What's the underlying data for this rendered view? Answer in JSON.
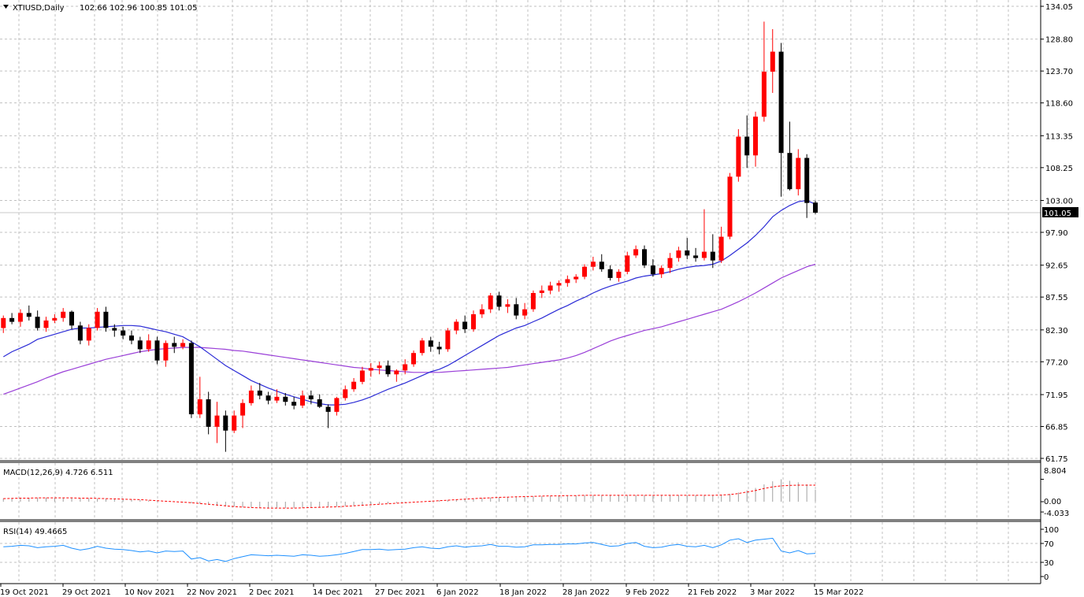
{
  "header": {
    "symbol": "XTIUSD,Daily",
    "ohlc": "102.66 102.96 100.85 101.05"
  },
  "price_axis": {
    "ticks": [
      "134.05",
      "128.80",
      "123.70",
      "118.60",
      "113.35",
      "108.25",
      "103.00",
      "97.90",
      "92.65",
      "87.55",
      "82.30",
      "77.20",
      "71.95",
      "66.85",
      "61.75"
    ],
    "current_price": "101.05"
  },
  "time_axis": {
    "labels": [
      "19 Oct 2021",
      "29 Oct 2021",
      "10 Nov 2021",
      "22 Nov 2021",
      "2 Dec 2021",
      "14 Dec 2021",
      "27 Dec 2021",
      "6 Jan 2022",
      "18 Jan 2022",
      "28 Jan 2022",
      "9 Feb 2022",
      "21 Feb 2022",
      "3 Mar 2022",
      "15 Mar 2022"
    ]
  },
  "macd": {
    "label": "MACD(12,26,9) 4.726 6.511",
    "ticks": [
      "8.804",
      "0.00",
      "-4.033"
    ]
  },
  "rsi": {
    "label": "RSI(14) 49.4665",
    "ticks": [
      "100",
      "70",
      "30",
      "0"
    ]
  },
  "colors": {
    "bull": "#ff0000",
    "bear": "#000000",
    "ma_fast": "#2b2bd6",
    "ma_slow": "#9a3fd8",
    "macd_hist": "#a0a0a0",
    "macd_signal": "#ff0000",
    "rsi_line": "#1e90ff",
    "grid": "#c0c0c0"
  },
  "chart_data": {
    "type": "candlestick",
    "series": [
      {
        "name": "XTIUSD,Daily",
        "candles": [
          [
            82.6,
            84.6,
            81.8,
            84.2
          ],
          [
            84.2,
            85.0,
            83.2,
            83.6
          ],
          [
            83.6,
            85.6,
            82.8,
            85.0
          ],
          [
            85.0,
            86.2,
            83.8,
            84.4
          ],
          [
            84.4,
            85.4,
            82.2,
            82.6
          ],
          [
            82.6,
            84.4,
            82.0,
            83.8
          ],
          [
            83.8,
            84.8,
            83.4,
            84.2
          ],
          [
            84.2,
            85.8,
            83.6,
            85.2
          ],
          [
            85.2,
            85.4,
            82.4,
            83.0
          ],
          [
            83.0,
            83.6,
            80.0,
            80.6
          ],
          [
            80.6,
            83.2,
            79.8,
            82.6
          ],
          [
            82.6,
            85.8,
            82.2,
            85.2
          ],
          [
            85.2,
            86.0,
            82.0,
            82.6
          ],
          [
            82.6,
            83.2,
            81.2,
            82.2
          ],
          [
            82.2,
            82.8,
            80.8,
            81.4
          ],
          [
            81.4,
            82.2,
            80.0,
            80.6
          ],
          [
            80.6,
            81.2,
            78.6,
            79.2
          ],
          [
            79.2,
            81.6,
            78.8,
            80.6
          ],
          [
            80.6,
            81.2,
            76.8,
            77.4
          ],
          [
            77.4,
            80.6,
            76.4,
            80.2
          ],
          [
            80.2,
            81.2,
            78.6,
            79.6
          ],
          [
            79.6,
            80.8,
            79.2,
            80.2
          ],
          [
            80.2,
            80.6,
            68.2,
            68.8
          ],
          [
            68.8,
            74.8,
            68.2,
            71.2
          ],
          [
            71.2,
            72.4,
            65.6,
            66.8
          ],
          [
            66.8,
            70.8,
            64.2,
            68.6
          ],
          [
            68.6,
            69.4,
            62.8,
            66.2
          ],
          [
            66.2,
            69.4,
            65.8,
            68.6
          ],
          [
            68.6,
            71.2,
            66.6,
            70.6
          ],
          [
            70.6,
            73.4,
            70.2,
            72.6
          ],
          [
            72.6,
            73.8,
            71.2,
            71.8
          ],
          [
            71.8,
            72.4,
            70.4,
            71.0
          ],
          [
            71.0,
            72.8,
            70.6,
            71.6
          ],
          [
            71.6,
            72.2,
            70.2,
            70.8
          ],
          [
            70.8,
            71.6,
            69.6,
            70.2
          ],
          [
            70.2,
            72.6,
            69.8,
            71.8
          ],
          [
            71.8,
            72.6,
            70.4,
            71.2
          ],
          [
            71.2,
            72.0,
            69.8,
            70.0
          ],
          [
            70.0,
            70.4,
            66.6,
            69.2
          ],
          [
            69.2,
            71.6,
            68.6,
            71.4
          ],
          [
            71.4,
            73.4,
            71.0,
            72.8
          ],
          [
            72.8,
            74.6,
            72.4,
            74.0
          ],
          [
            74.0,
            76.4,
            73.6,
            75.8
          ],
          [
            75.8,
            77.0,
            74.8,
            76.2
          ],
          [
            76.2,
            77.2,
            75.2,
            76.6
          ],
          [
            76.6,
            77.4,
            74.8,
            75.2
          ],
          [
            75.2,
            76.0,
            74.0,
            75.8
          ],
          [
            75.8,
            77.6,
            75.2,
            76.8
          ],
          [
            76.8,
            79.0,
            76.4,
            78.6
          ],
          [
            78.6,
            81.0,
            78.2,
            80.6
          ],
          [
            80.6,
            81.2,
            78.8,
            79.6
          ],
          [
            79.6,
            80.4,
            78.4,
            79.2
          ],
          [
            79.2,
            82.6,
            78.8,
            82.2
          ],
          [
            82.2,
            84.0,
            81.6,
            83.6
          ],
          [
            83.6,
            84.6,
            81.8,
            82.4
          ],
          [
            82.4,
            85.4,
            82.0,
            84.8
          ],
          [
            84.8,
            86.4,
            84.2,
            85.6
          ],
          [
            85.6,
            88.2,
            85.0,
            87.8
          ],
          [
            87.8,
            88.4,
            85.4,
            86.0
          ],
          [
            86.0,
            87.2,
            85.0,
            86.4
          ],
          [
            86.4,
            87.4,
            84.0,
            84.6
          ],
          [
            84.6,
            86.6,
            84.0,
            85.6
          ],
          [
            85.6,
            88.6,
            85.2,
            88.2
          ],
          [
            88.2,
            89.4,
            87.4,
            88.6
          ],
          [
            88.6,
            90.0,
            88.0,
            89.4
          ],
          [
            89.4,
            90.2,
            88.4,
            89.8
          ],
          [
            89.8,
            91.0,
            89.2,
            90.4
          ],
          [
            90.4,
            91.2,
            89.8,
            90.8
          ],
          [
            90.8,
            92.8,
            90.4,
            92.4
          ],
          [
            92.4,
            94.0,
            91.8,
            93.2
          ],
          [
            93.2,
            94.4,
            91.6,
            92.0
          ],
          [
            92.0,
            92.6,
            90.2,
            90.6
          ],
          [
            90.6,
            92.0,
            90.0,
            91.6
          ],
          [
            91.6,
            94.8,
            91.2,
            94.2
          ],
          [
            94.2,
            95.8,
            93.8,
            95.2
          ],
          [
            95.2,
            95.8,
            92.2,
            92.6
          ],
          [
            92.6,
            93.6,
            90.8,
            91.2
          ],
          [
            91.2,
            92.6,
            90.6,
            92.2
          ],
          [
            92.2,
            94.6,
            91.4,
            93.8
          ],
          [
            93.8,
            95.6,
            93.2,
            95.0
          ],
          [
            95.0,
            97.0,
            93.6,
            94.2
          ],
          [
            94.2,
            95.4,
            93.2,
            93.8
          ],
          [
            93.8,
            101.6,
            93.4,
            94.8
          ],
          [
            94.8,
            97.6,
            92.2,
            93.4
          ],
          [
            93.4,
            98.8,
            93.0,
            97.2
          ],
          [
            97.2,
            107.4,
            96.8,
            106.8
          ],
          [
            106.8,
            114.4,
            106.0,
            113.2
          ],
          [
            113.2,
            116.6,
            108.2,
            110.2
          ],
          [
            110.2,
            117.2,
            108.4,
            116.4
          ],
          [
            116.4,
            131.6,
            115.6,
            123.6
          ],
          [
            123.6,
            130.4,
            120.2,
            126.8
          ],
          [
            126.8,
            128.2,
            103.6,
            110.6
          ],
          [
            110.6,
            115.6,
            104.6,
            104.8
          ],
          [
            104.8,
            111.2,
            103.8,
            109.8
          ],
          [
            109.8,
            110.4,
            100.2,
            102.6
          ],
          [
            102.66,
            102.96,
            100.85,
            101.05
          ]
        ]
      }
    ],
    "ma_fast": [
      78.0,
      78.8,
      79.4,
      80.0,
      80.8,
      81.2,
      81.6,
      82.0,
      82.4,
      82.6,
      82.6,
      82.7,
      82.8,
      82.9,
      83.0,
      83.0,
      82.9,
      82.6,
      82.3,
      82.0,
      81.6,
      81.2,
      80.4,
      79.6,
      78.6,
      77.6,
      76.6,
      75.8,
      75.0,
      74.2,
      73.6,
      73.0,
      72.5,
      72.0,
      71.6,
      71.2,
      70.8,
      70.5,
      70.3,
      70.3,
      70.4,
      70.7,
      71.1,
      71.6,
      72.2,
      72.8,
      73.3,
      73.8,
      74.4,
      75.0,
      75.6,
      76.0,
      76.6,
      77.4,
      78.2,
      79.0,
      79.8,
      80.6,
      81.4,
      82.0,
      82.6,
      83.0,
      83.6,
      84.2,
      84.9,
      85.6,
      86.2,
      86.9,
      87.5,
      88.2,
      88.8,
      89.3,
      89.7,
      90.1,
      90.6,
      90.9,
      91.1,
      91.3,
      91.6,
      92.0,
      92.3,
      92.5,
      92.6,
      92.8,
      93.3,
      94.2,
      95.2,
      96.2,
      97.4,
      98.8,
      100.4,
      101.4,
      102.2,
      102.8,
      103.0,
      102.4
    ],
    "ma_slow": [
      72.0,
      72.5,
      73.0,
      73.5,
      74.0,
      74.6,
      75.1,
      75.6,
      76.0,
      76.4,
      76.8,
      77.2,
      77.6,
      77.9,
      78.2,
      78.5,
      78.8,
      79.0,
      79.2,
      79.3,
      79.4,
      79.5,
      79.5,
      79.5,
      79.4,
      79.3,
      79.2,
      79.0,
      78.9,
      78.7,
      78.5,
      78.3,
      78.1,
      77.9,
      77.7,
      77.5,
      77.3,
      77.1,
      76.9,
      76.7,
      76.5,
      76.3,
      76.2,
      76.0,
      75.9,
      75.8,
      75.7,
      75.6,
      75.5,
      75.5,
      75.5,
      75.5,
      75.6,
      75.7,
      75.8,
      75.9,
      76.0,
      76.1,
      76.2,
      76.3,
      76.5,
      76.7,
      76.9,
      77.1,
      77.3,
      77.5,
      77.8,
      78.2,
      78.7,
      79.3,
      79.9,
      80.5,
      81.0,
      81.4,
      81.8,
      82.2,
      82.5,
      82.8,
      83.2,
      83.6,
      84.0,
      84.4,
      84.8,
      85.2,
      85.6,
      86.2,
      86.8,
      87.5,
      88.2,
      89.0,
      89.8,
      90.6,
      91.2,
      91.8,
      92.4,
      92.8
    ],
    "macd_hist": [
      1.3,
      1.4,
      1.5,
      1.5,
      1.6,
      1.6,
      1.5,
      1.5,
      1.5,
      1.4,
      1.3,
      1.2,
      1.2,
      1.1,
      1.0,
      0.9,
      0.7,
      0.5,
      0.3,
      0.1,
      -0.1,
      -0.3,
      -0.6,
      -0.9,
      -1.2,
      -1.5,
      -1.8,
      -2.0,
      -2.2,
      -2.3,
      -2.4,
      -2.5,
      -2.5,
      -2.5,
      -2.5,
      -2.4,
      -2.3,
      -2.2,
      -2.1,
      -1.9,
      -1.7,
      -1.5,
      -1.3,
      -1.1,
      -0.9,
      -0.7,
      -0.5,
      -0.3,
      -0.1,
      0.1,
      0.3,
      0.5,
      0.7,
      0.9,
      1.0,
      1.2,
      1.4,
      1.6,
      1.7,
      1.8,
      1.9,
      2.0,
      2.1,
      2.2,
      2.3,
      2.3,
      2.4,
      2.4,
      2.5,
      2.5,
      2.5,
      2.5,
      2.5,
      2.5,
      2.5,
      2.5,
      2.5,
      2.5,
      2.5,
      2.5,
      2.5,
      2.5,
      2.5,
      2.5,
      2.6,
      3.0,
      3.6,
      4.5,
      5.4,
      6.8,
      8.0,
      8.8,
      8.2,
      7.6,
      6.8,
      4.7
    ],
    "macd_signal": [
      1.2,
      1.3,
      1.4,
      1.4,
      1.5,
      1.5,
      1.5,
      1.5,
      1.5,
      1.4,
      1.4,
      1.3,
      1.2,
      1.1,
      1.0,
      0.9,
      0.8,
      0.6,
      0.4,
      0.2,
      0.0,
      -0.2,
      -0.4,
      -0.7,
      -1.0,
      -1.3,
      -1.6,
      -1.9,
      -2.1,
      -2.3,
      -2.4,
      -2.5,
      -2.5,
      -2.5,
      -2.5,
      -2.4,
      -2.3,
      -2.2,
      -2.1,
      -2.0,
      -1.8,
      -1.6,
      -1.4,
      -1.2,
      -1.0,
      -0.8,
      -0.6,
      -0.4,
      -0.2,
      0.0,
      0.2,
      0.4,
      0.6,
      0.8,
      1.0,
      1.2,
      1.4,
      1.5,
      1.7,
      1.8,
      1.9,
      2.0,
      2.1,
      2.2,
      2.3,
      2.3,
      2.4,
      2.4,
      2.5,
      2.5,
      2.5,
      2.5,
      2.5,
      2.5,
      2.5,
      2.5,
      2.5,
      2.5,
      2.5,
      2.5,
      2.5,
      2.5,
      2.5,
      2.5,
      2.6,
      2.8,
      3.2,
      3.8,
      4.4,
      5.2,
      5.8,
      6.2,
      6.4,
      6.5,
      6.5,
      6.5
    ],
    "rsi": [
      63,
      64,
      66,
      65,
      61,
      63,
      64,
      66,
      60,
      56,
      59,
      64,
      60,
      58,
      57,
      55,
      52,
      54,
      50,
      54,
      53,
      54,
      37,
      40,
      33,
      36,
      32,
      38,
      42,
      46,
      45,
      44,
      45,
      44,
      43,
      46,
      45,
      43,
      44,
      46,
      49,
      53,
      57,
      57,
      58,
      56,
      57,
      58,
      61,
      63,
      60,
      59,
      63,
      65,
      62,
      64,
      65,
      68,
      64,
      64,
      62,
      63,
      67,
      67,
      68,
      68,
      69,
      69,
      71,
      72,
      68,
      64,
      65,
      70,
      72,
      64,
      61,
      62,
      66,
      68,
      64,
      63,
      66,
      61,
      67,
      77,
      80,
      72,
      77,
      79,
      81,
      54,
      50,
      55,
      48,
      49
    ]
  }
}
